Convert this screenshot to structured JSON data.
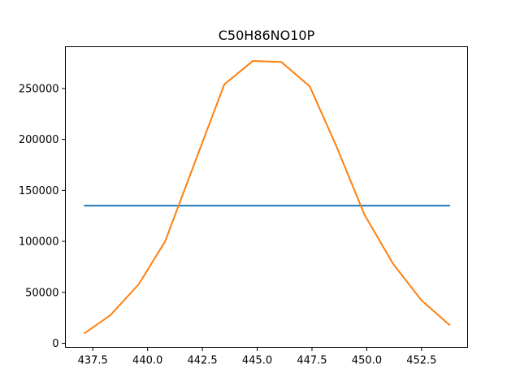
{
  "chart_data": {
    "type": "line",
    "title": "C50H86NO10P",
    "xlabel": "",
    "ylabel": "",
    "xlim": [
      436.25,
      454.6
    ],
    "ylim": [
      -4000,
      291000
    ],
    "x_ticks": [
      437.5,
      440.0,
      442.5,
      445.0,
      447.5,
      450.0,
      452.5
    ],
    "x_tick_labels": [
      "437.5",
      "440.0",
      "442.5",
      "445.0",
      "447.5",
      "450.0",
      "452.5"
    ],
    "y_ticks": [
      0,
      50000,
      100000,
      150000,
      200000,
      250000
    ],
    "y_tick_labels": [
      "0",
      "50000",
      "100000",
      "150000",
      "200000",
      "250000"
    ],
    "grid": false,
    "legend": "none",
    "series": [
      {
        "color": "#1f77b4",
        "x": [
          437.1,
          453.8
        ],
        "y": [
          135000,
          135000
        ]
      },
      {
        "color": "#ff7f0e",
        "x": [
          437.1,
          438.3,
          439.6,
          440.8,
          442.2,
          443.5,
          444.8,
          446.1,
          447.4,
          448.6,
          449.9,
          451.2,
          452.5,
          453.8
        ],
        "y": [
          9500,
          27500,
          58000,
          100000,
          180000,
          254000,
          277000,
          276000,
          252000,
          194000,
          126000,
          78000,
          42000,
          17500
        ]
      }
    ]
  }
}
